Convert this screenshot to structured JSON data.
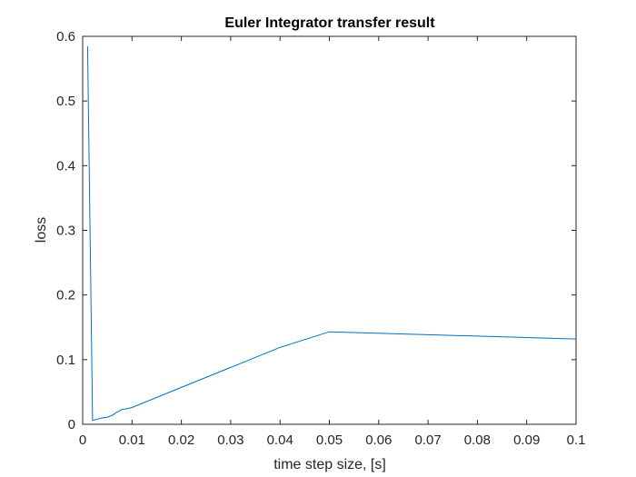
{
  "chart_data": {
    "type": "line",
    "title": "Euler Integrator transfer result",
    "xlabel": "time step size, [s]",
    "ylabel": "loss",
    "xlim": [
      0,
      0.1
    ],
    "ylim": [
      0,
      0.6
    ],
    "xticks": [
      0,
      0.01,
      0.02,
      0.03,
      0.04,
      0.05,
      0.06,
      0.07,
      0.08,
      0.09,
      0.1
    ],
    "xtick_labels": [
      "0",
      "0.01",
      "0.02",
      "0.03",
      "0.04",
      "0.05",
      "0.06",
      "0.07",
      "0.08",
      "0.09",
      "0.1"
    ],
    "yticks": [
      0,
      0.1,
      0.2,
      0.3,
      0.4,
      0.5,
      0.6
    ],
    "ytick_labels": [
      "0",
      "0.1",
      "0.2",
      "0.3",
      "0.4",
      "0.5",
      "0.6"
    ],
    "grid": false,
    "series": [
      {
        "color": "#0072BD",
        "x": [
          0.001,
          0.002,
          0.003,
          0.004,
          0.005,
          0.006,
          0.007,
          0.008,
          0.009,
          0.01,
          0.02,
          0.03,
          0.04,
          0.05,
          0.1
        ],
        "y": [
          0.585,
          0.006,
          0.008,
          0.01,
          0.011,
          0.014,
          0.019,
          0.023,
          0.024,
          0.026,
          0.057,
          0.088,
          0.119,
          0.143,
          0.132
        ]
      }
    ]
  }
}
